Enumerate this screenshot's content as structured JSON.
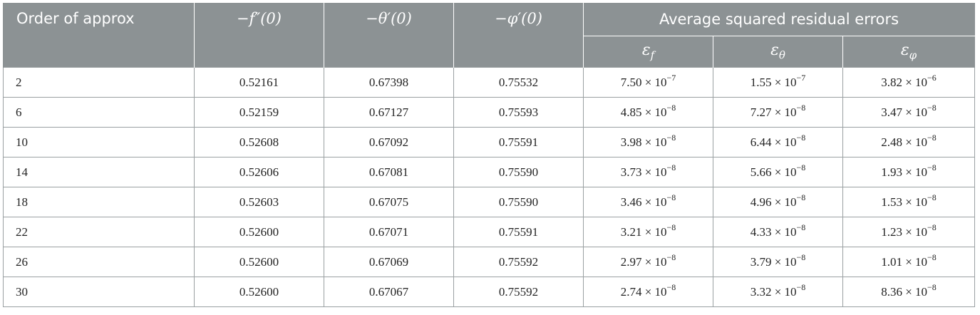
{
  "header": {
    "order_label": "Order of approx",
    "col_f": "−f″(0)",
    "col_theta": "−θ′(0)",
    "col_phi": "−φ′(0)",
    "avg_label": "Average squared residual errors",
    "eps_f": "εf",
    "eps_theta": "εθ",
    "eps_phi": "εφ"
  },
  "rows": [
    {
      "order": "2",
      "f": "0.52161",
      "theta": "0.67398",
      "phi": "0.75532",
      "ef": "7.50 × 10",
      "ef_exp": "−7",
      "et": "1.55 × 10",
      "et_exp": "−7",
      "ep": "3.82 × 10",
      "ep_exp": "−6"
    },
    {
      "order": "6",
      "f": "0.52159",
      "theta": "0.67127",
      "phi": "0.75593",
      "ef": "4.85 × 10",
      "ef_exp": "−8",
      "et": "7.27 × 10",
      "et_exp": "−8",
      "ep": "3.47 × 10",
      "ep_exp": "−8"
    },
    {
      "order": "10",
      "f": "0.52608",
      "theta": "0.67092",
      "phi": "0.75591",
      "ef": "3.98 × 10",
      "ef_exp": "−8",
      "et": "6.44 × 10",
      "et_exp": "−8",
      "ep": "2.48 × 10",
      "ep_exp": "−8"
    },
    {
      "order": "14",
      "f": "0.52606",
      "theta": "0.67081",
      "phi": "0.75590",
      "ef": "3.73 × 10",
      "ef_exp": "−8",
      "et": "5.66 × 10",
      "et_exp": "−8",
      "ep": "1.93 × 10",
      "ep_exp": "−8"
    },
    {
      "order": "18",
      "f": "0.52603",
      "theta": "0.67075",
      "phi": "0.75590",
      "ef": "3.46 × 10",
      "ef_exp": "−8",
      "et": "4.96 × 10",
      "et_exp": "−8",
      "ep": "1.53 × 10",
      "ep_exp": "−8"
    },
    {
      "order": "22",
      "f": "0.52600",
      "theta": "0.67071",
      "phi": "0.75591",
      "ef": "3.21 × 10",
      "ef_exp": "−8",
      "et": "4.33 × 10",
      "et_exp": "−8",
      "ep": "1.23 × 10",
      "ep_exp": "−8"
    },
    {
      "order": "26",
      "f": "0.52600",
      "theta": "0.67069",
      "phi": "0.75592",
      "ef": "2.97 × 10",
      "ef_exp": "−8",
      "et": "3.79 × 10",
      "et_exp": "−8",
      "ep": "1.01 × 10",
      "ep_exp": "−8"
    },
    {
      "order": "30",
      "f": "0.52600",
      "theta": "0.67067",
      "phi": "0.75592",
      "ef": "2.74 × 10",
      "ef_exp": "−8",
      "et": "3.32 × 10",
      "et_exp": "−8",
      "ep": "8.36 × 10",
      "ep_exp": "−8"
    }
  ]
}
